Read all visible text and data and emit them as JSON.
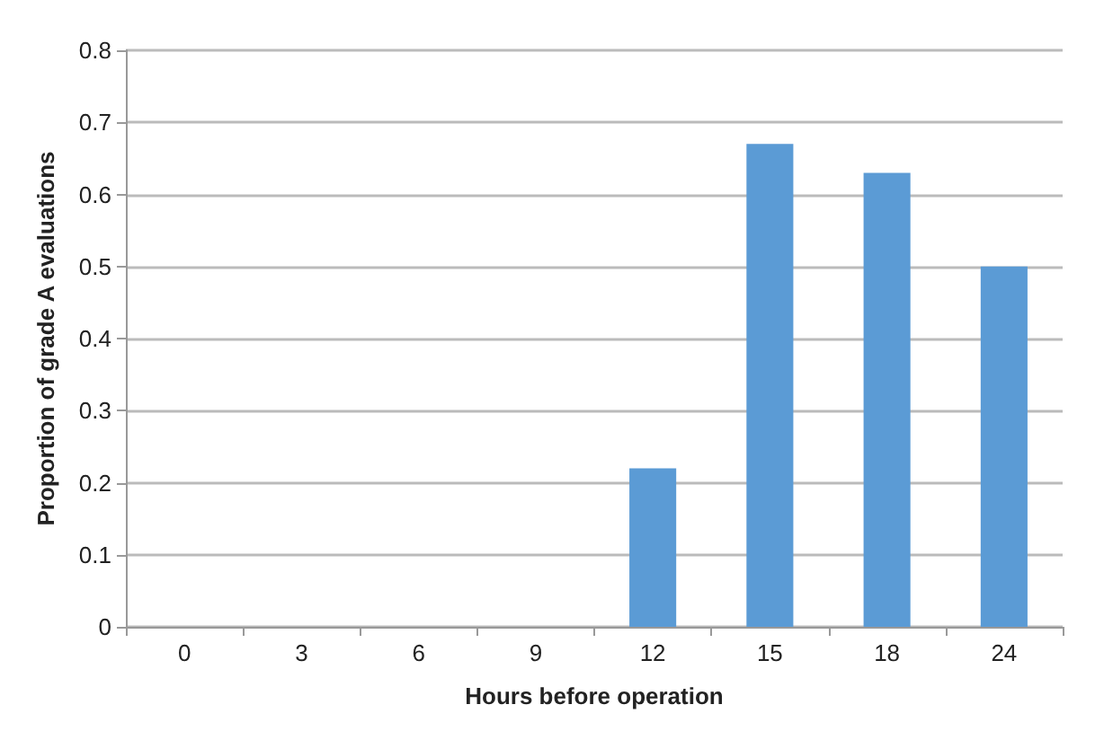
{
  "chart_data": {
    "type": "bar",
    "xlabel": "Hours before operation",
    "ylabel": "Proportion of grade A evaluations",
    "categories": [
      "0",
      "3",
      "6",
      "9",
      "12",
      "15",
      "18",
      "24"
    ],
    "values": [
      0,
      0,
      0,
      0,
      0.22,
      0.67,
      0.63,
      0.5
    ],
    "color": "#5b9bd5",
    "ylim": [
      0,
      0.8
    ],
    "yticks": [
      0,
      0.1,
      0.2,
      0.3,
      0.4,
      0.5,
      0.6,
      0.7,
      0.8
    ],
    "grid": "y"
  }
}
